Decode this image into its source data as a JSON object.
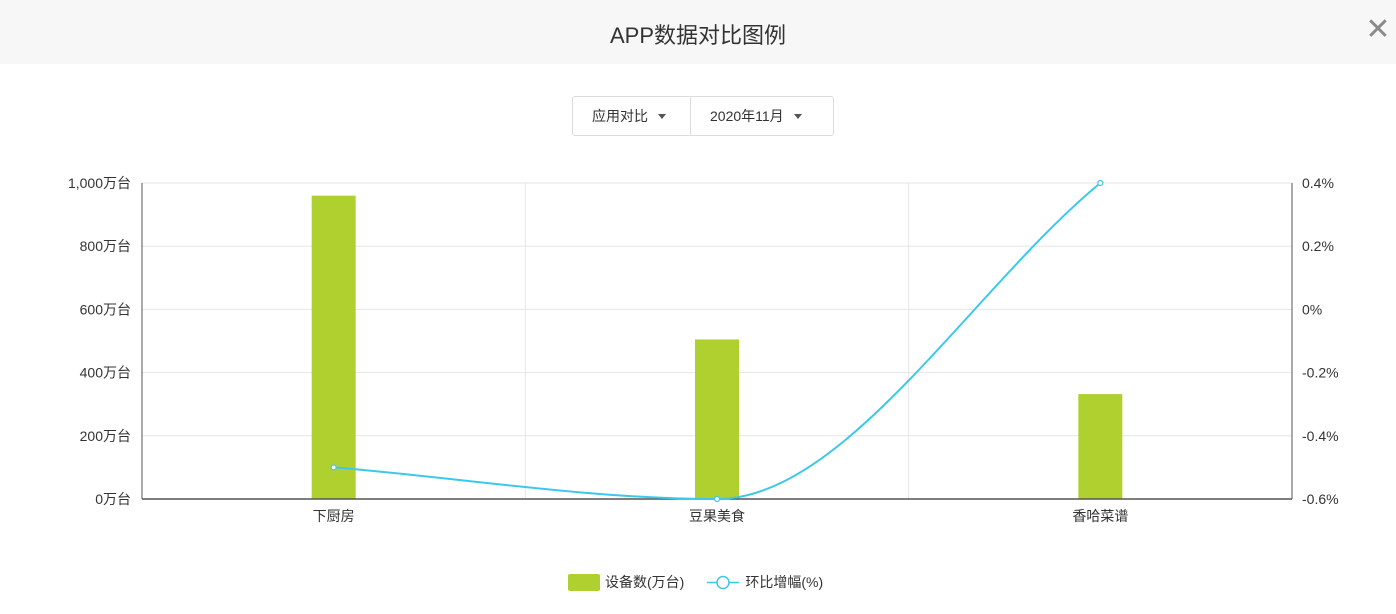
{
  "header": {
    "title": "APP数据对比图例",
    "close_glyph": "✕"
  },
  "controls": {
    "compare_mode": "应用对比",
    "month": "2020年11月"
  },
  "colors": {
    "bar": "#b0d030",
    "line": "#3cc8ea",
    "grid": "#e6e6e6",
    "axis": "#555555"
  },
  "chart_data": {
    "type": "bar",
    "categories": [
      "下厨房",
      "豆果美食",
      "香哈菜谱"
    ],
    "series": [
      {
        "name": "设备数(万台)",
        "type": "bar",
        "axis": "left",
        "values": [
          960,
          505,
          332
        ]
      },
      {
        "name": "环比增幅(%)",
        "type": "line",
        "axis": "right",
        "smooth": true,
        "values": [
          -0.5,
          -0.6,
          0.4
        ]
      }
    ],
    "y_left": {
      "min": 0,
      "max": 1000,
      "ticks": [
        "0万台",
        "200万台",
        "400万台",
        "600万台",
        "800万台",
        "1,000万台"
      ]
    },
    "y_right": {
      "min": -0.6,
      "max": 0.4,
      "ticks": [
        "-0.6%",
        "-0.4%",
        "-0.2%",
        "0%",
        "0.2%",
        "0.4%"
      ]
    },
    "grid": true,
    "legend_position": "bottom-center"
  }
}
